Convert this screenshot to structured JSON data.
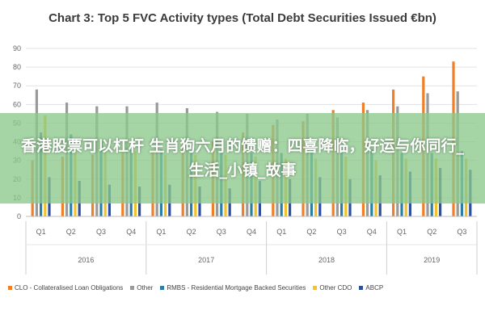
{
  "chart_data": {
    "type": "bar",
    "title": "Chart 3: Top 5 FVC Activity types (Total Debt Securities Issued €bn)",
    "ylim": [
      0,
      90
    ],
    "yticks": [
      0,
      10,
      20,
      30,
      40,
      50,
      60,
      70,
      80,
      90
    ],
    "grid": true,
    "legend_position": "bottom",
    "groups": [
      {
        "label": "2016",
        "categories": [
          "Q1",
          "Q2",
          "Q3",
          "Q4"
        ]
      },
      {
        "label": "2017",
        "categories": [
          "Q1",
          "Q2",
          "Q3",
          "Q4"
        ]
      },
      {
        "label": "2018",
        "categories": [
          "Q1",
          "Q2",
          "Q3",
          "Q4"
        ]
      },
      {
        "label": "2019",
        "categories": [
          "Q1",
          "Q2",
          "Q3"
        ]
      }
    ],
    "series": [
      {
        "name": "CLO - Collateralised Loan Obligations",
        "color": "#f07f2a",
        "values": [
          30,
          32,
          33,
          34,
          35,
          38,
          40,
          45,
          49,
          51,
          57,
          61,
          68,
          75,
          83
        ]
      },
      {
        "name": "Other",
        "color": "#9a9a9a",
        "values": [
          68,
          61,
          59,
          59,
          61,
          58,
          56,
          55,
          52,
          55,
          53,
          57,
          59,
          66,
          67
        ]
      },
      {
        "name": "RMBS - Residential Mortgage Backed Securities",
        "color": "#2b7fa3",
        "values": [
          45,
          44,
          40,
          36,
          36,
          35,
          35,
          34,
          34,
          34,
          34,
          36,
          34,
          34,
          35
        ]
      },
      {
        "name": "Other CDO",
        "color": "#f2c12e",
        "values": [
          54,
          36,
          35,
          35,
          33,
          33,
          33,
          32,
          31,
          31,
          32,
          30,
          31,
          31,
          31
        ]
      },
      {
        "name": "ABCP",
        "color": "#2d4f9c",
        "values": [
          21,
          19,
          17,
          16,
          17,
          16,
          15,
          19,
          20,
          21,
          20,
          22,
          24,
          26,
          25
        ]
      }
    ]
  },
  "banner": {
    "text": "香港股票可以杠杆 生肖狗六月的馈赠：四喜降临，好运与你同行_生活_小镇_故事"
  }
}
